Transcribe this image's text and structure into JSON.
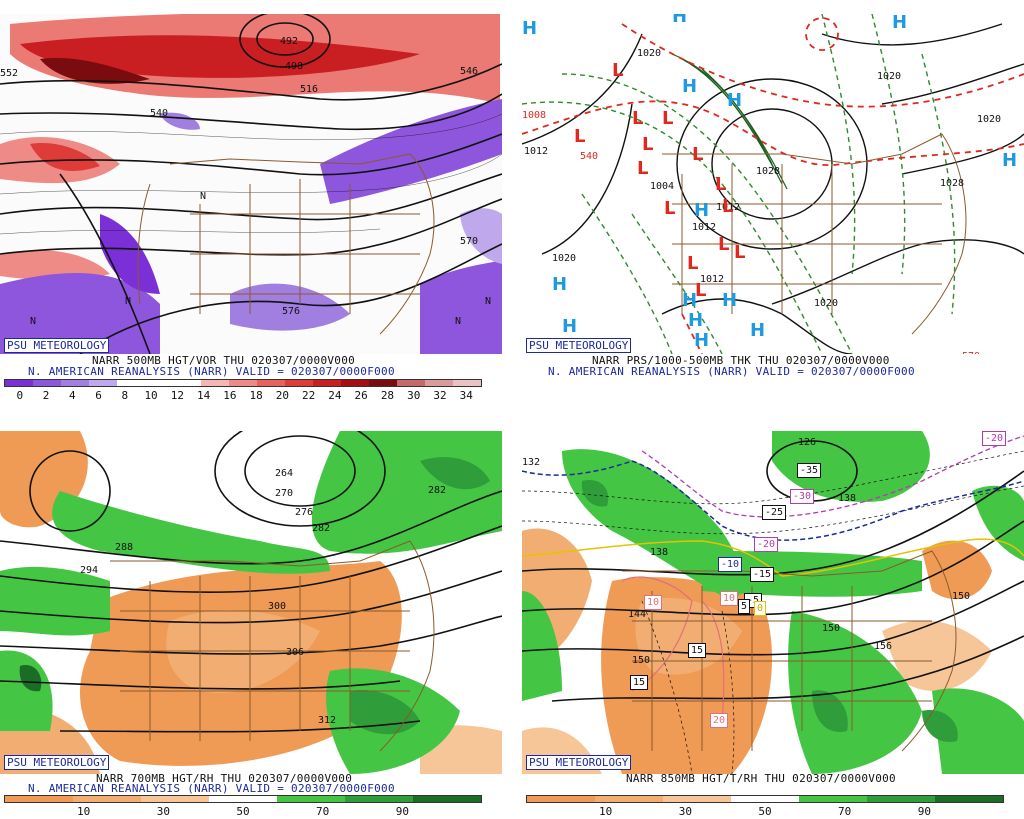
{
  "panels": {
    "tl": {
      "badge": "PSU METEOROLOGY",
      "caption1": "NARR 500MB HGT/VOR THU 020307/0000V000",
      "caption2": "N. AMERICAN REANALYSIS (NARR) VALID = 020307/0000F000",
      "scale_labels": [
        "0",
        "2",
        "4",
        "6",
        "8",
        "10",
        "12",
        "14",
        "16",
        "18",
        "20",
        "22",
        "24",
        "26",
        "28",
        "30",
        "32",
        "34"
      ],
      "scale_colors": [
        "#7b2fd6",
        "#8e55dd",
        "#a07fe0",
        "#c0a8ec",
        "#ffffff",
        "#ffffff",
        "#ffffff",
        "#f3b7b5",
        "#ef8b86",
        "#e8615c",
        "#de3c38",
        "#c91f22",
        "#a80d12",
        "#7a0b0e",
        "#c46a6a",
        "#d99b9b",
        "#ebc2c2"
      ],
      "contour_labels": [
        "492",
        "498",
        "516",
        "540",
        "552",
        "546",
        "570",
        "576"
      ]
    },
    "tr": {
      "badge": "PSU METEOROLOGY",
      "caption1": "NARR PRS/1000-500MB THK THU 020307/0000V000",
      "caption2": "N. AMERICAN REANALYSIS (NARR) VALID = 020307/0000F000",
      "contour_labels": [
        "1020",
        "1020",
        "1012",
        "1004",
        "1028",
        "1028",
        "1012",
        "1020",
        "1012",
        "1020",
        "1012",
        "1020",
        "1008",
        "540",
        "570"
      ]
    },
    "bl": {
      "badge": "PSU METEOROLOGY",
      "caption1": "NARR 700MB HGT/RH THU 020307/0000V000",
      "caption2": "N. AMERICAN REANALYSIS (NARR) VALID = 020307/0000F000",
      "scale_labels": [
        "10",
        "30",
        "50",
        "70",
        "90"
      ],
      "scale_colors": [
        "#ef9a55",
        "#f2ae72",
        "#f6c698",
        "#ffffff",
        "#44c544",
        "#2e9d3a",
        "#1b6c27"
      ],
      "contour_labels": [
        "264",
        "270",
        "276",
        "282",
        "288",
        "282",
        "294",
        "300",
        "306",
        "312"
      ]
    },
    "br": {
      "badge": "PSU METEOROLOGY",
      "caption1": "NARR 850MB HGT/T/RH THU 020307/0000V000",
      "scale_labels": [
        "10",
        "30",
        "50",
        "70",
        "90"
      ],
      "scale_colors": [
        "#ef9a55",
        "#f2ae72",
        "#f6c698",
        "#ffffff",
        "#44c544",
        "#2e9d3a",
        "#1b6c27"
      ],
      "contour_labels": [
        "126",
        "132",
        "138",
        "138",
        "144",
        "150",
        "150",
        "156",
        "150"
      ],
      "temp_boxes": [
        "-35",
        "-30",
        "-25",
        "-20",
        "-20",
        "-15",
        "-10",
        "-5",
        "5",
        "0",
        "10",
        "10",
        "15",
        "15",
        "20"
      ]
    }
  },
  "symbols": {
    "high": "H",
    "low": "L",
    "vort": "N"
  },
  "colors": {
    "badge_text": "#1b2a9c",
    "high_blue": "#1e9be0",
    "low_red": "#e0281e",
    "borders": "#8b5a2b",
    "thk_green": "#2e8b2e",
    "thk_red": "#e0281e"
  }
}
